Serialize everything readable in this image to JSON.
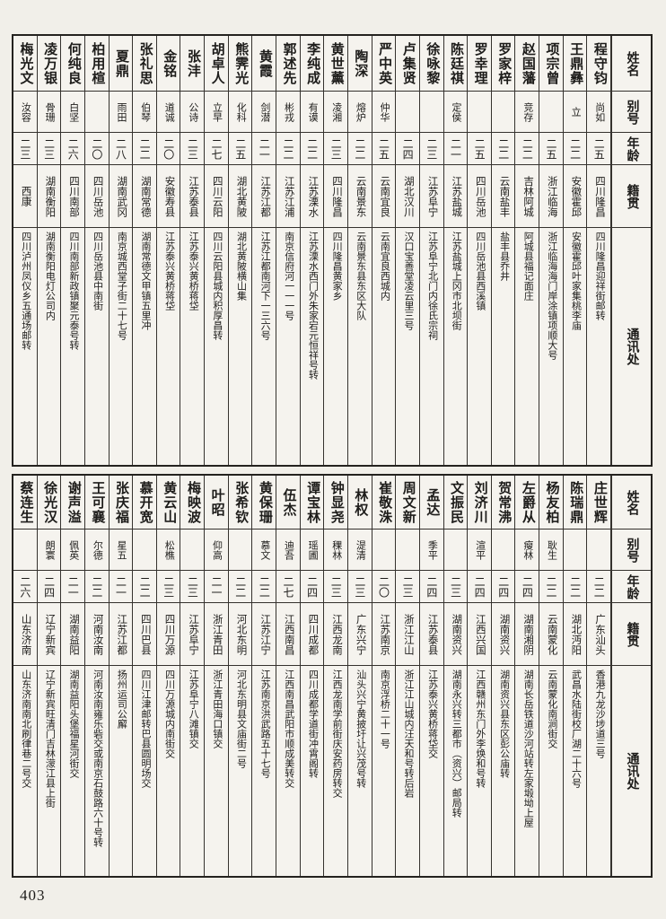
{
  "page": {
    "number": "403"
  },
  "headers": {
    "name": "姓名",
    "alias": "别号",
    "age": "年龄",
    "origin": "籍贯",
    "address": "通讯处"
  },
  "tables": {
    "top": {
      "entries": [
        {
          "name": "程守钧",
          "alias": "尚如",
          "age": "二五",
          "origin": "四川隆昌",
          "address": "四川隆昌迎祥街邮转"
        },
        {
          "name": "王鼎彝",
          "alias": "立",
          "age": "二二",
          "origin": "安徽霍邱",
          "address": "安徽霍邱叶家集桃李庙"
        },
        {
          "name": "项宗曾",
          "alias": "",
          "age": "二五",
          "origin": "浙江临海",
          "address": "浙江临海海门岸涂镇项顺大号"
        },
        {
          "name": "赵国藩",
          "alias": "竞存",
          "age": "二二",
          "origin": "吉林阿城",
          "address": "阿城县福记面庄"
        },
        {
          "name": "罗家梓",
          "alias": "",
          "age": "二二",
          "origin": "云南盐丰",
          "address": "盐丰县乔井"
        },
        {
          "name": "罗幸理",
          "alias": "",
          "age": "二五",
          "origin": "四川岳池",
          "address": "四川岳池县西溪镇"
        },
        {
          "name": "陈廷祺",
          "alias": "定侯",
          "age": "二一",
          "origin": "江苏盐城",
          "address": "江苏盐城上冈市北坝街"
        },
        {
          "name": "徐咏黎",
          "alias": "",
          "age": "二三",
          "origin": "江苏阜宁",
          "address": "江苏阜宁北门内徐氏宗祠"
        },
        {
          "name": "卢集贤",
          "alias": "",
          "age": "二四",
          "origin": "湖北汉川",
          "address": "汉口宝善堂凌云里三号"
        },
        {
          "name": "严中英",
          "alias": "仲华",
          "age": "二五",
          "origin": "云南宜良",
          "address": "云南宜良西城内"
        },
        {
          "name": "陶深",
          "alias": "熔炉",
          "age": "二二",
          "origin": "云南景东",
          "address": "云南景东县东区大队"
        },
        {
          "name": "黄世薰",
          "alias": "凌湘",
          "age": "二三",
          "origin": "四川隆昌",
          "address": "四川隆昌黄家乡"
        },
        {
          "name": "李纯成",
          "alias": "有谟",
          "age": "二二",
          "origin": "江苏溧水",
          "address": "江苏溧水西门外朱家宕元恒祥号转"
        },
        {
          "name": "郭述先",
          "alias": "彬戎",
          "age": "二二",
          "origin": "江苏江浦",
          "address": "南京信府河一一一号"
        },
        {
          "name": "黄霞",
          "alias": "剑潜",
          "age": "二一",
          "origin": "江苏江都",
          "address": "江苏江都南河下一三六号"
        },
        {
          "name": "熊霁光",
          "alias": "化科",
          "age": "二五",
          "origin": "湖北黄陂",
          "address": "湖北黄陂横山集"
        },
        {
          "name": "胡卓人",
          "alias": "立早",
          "age": "二七",
          "origin": "四川云阳",
          "address": "四川云阳县城内积厚昌转"
        },
        {
          "name": "张沣",
          "alias": "公诗",
          "age": "二三",
          "origin": "江苏泰县",
          "address": "江苏泰兴黄桥蒋垈"
        },
        {
          "name": "金铭",
          "alias": "道诚",
          "age": "二〇",
          "origin": "安徽寿县",
          "address": "江苏泰兴黄桥蒋垈"
        },
        {
          "name": "张礼思",
          "alias": "伯琴",
          "age": "二二",
          "origin": "湖南常德",
          "address": "湖南常德文甲镇五里冲"
        },
        {
          "name": "夏鼎",
          "alias": "雨田",
          "age": "二八",
          "origin": "湖南武冈",
          "address": "南京城西堂子街二十七号"
        },
        {
          "name": "柏用楦",
          "alias": "",
          "age": "二〇",
          "origin": "四川岳池",
          "address": "四川岳池县中南街"
        },
        {
          "name": "何纯良",
          "alias": "白坚",
          "age": "二六",
          "origin": "四川南部",
          "address": "四川南部新政镇聚元泰号转"
        },
        {
          "name": "凌万银",
          "alias": "骨珊",
          "age": "二三",
          "origin": "湖南衡阳",
          "address": "湖南衡阳电灯公司内"
        },
        {
          "name": "梅光文",
          "alias": "汝容",
          "age": "二三",
          "origin": "西康",
          "address": "四川泸州凤仪乡五通场邮转"
        }
      ]
    },
    "bottom": {
      "entries": [
        {
          "name": "庄世辉",
          "alias": "",
          "age": "二二",
          "origin": "广东汕头",
          "address": "香港九龙沙埗道三号"
        },
        {
          "name": "陈瑞鼎",
          "alias": "",
          "age": "二二",
          "origin": "湖北沔阳",
          "address": "武昌水陆街校厂湖二十六号"
        },
        {
          "name": "杨友柏",
          "alias": "耿生",
          "age": "二二",
          "origin": "云南蒙化",
          "address": "云南蒙化南涧街交"
        },
        {
          "name": "左爵从",
          "alias": "瘦林",
          "age": "二四",
          "origin": "湖南湘阴",
          "address": "湖南长岳铁道沙河站转左家塅坳上屋"
        },
        {
          "name": "贺常沸",
          "alias": "",
          "age": "二四",
          "origin": "湖南资兴",
          "address": "湖南资兴县东区彭公庙转"
        },
        {
          "name": "刘济川",
          "alias": "渲平",
          "age": "二四",
          "origin": "江西兴国",
          "address": "江西赣州东门外李焕和号转"
        },
        {
          "name": "文振民",
          "alias": "",
          "age": "二三",
          "origin": "湖南资兴",
          "address": "湖南永兴转三都市（资兴）邮局转"
        },
        {
          "name": "孟达",
          "alias": "季平",
          "age": "二四",
          "origin": "江苏泰县",
          "address": "江苏泰兴黄桥蒋垈交"
        },
        {
          "name": "周文新",
          "alias": "",
          "age": "二三",
          "origin": "浙江江山",
          "address": "浙江江山城内汪天和号转后岩"
        },
        {
          "name": "崔敬洙",
          "alias": "",
          "age": "二〇",
          "origin": "江苏南京",
          "address": "南京浮桥二十一号"
        },
        {
          "name": "林权",
          "alias": "湜清",
          "age": "二三",
          "origin": "广东兴宁",
          "address": "汕头兴宁黄披圩让兴茂号转"
        },
        {
          "name": "钟显尧",
          "alias": "稞林",
          "age": "二三",
          "origin": "江西龙南",
          "address": "江西龙南学前街庆安药房转交"
        },
        {
          "name": "谭宝林",
          "alias": "瑶圃",
          "age": "二四",
          "origin": "四川成都",
          "address": "四川成都学道街冲霄阁转"
        },
        {
          "name": "伍杰",
          "alias": "迪吾",
          "age": "二七",
          "origin": "江西南昌",
          "address": "江西南昌武阳市顺成美转交"
        },
        {
          "name": "黄保珊",
          "alias": "慕文",
          "age": "二二",
          "origin": "江苏江宁",
          "address": "江苏南京洪武路五十七号"
        },
        {
          "name": "张希钦",
          "alias": "",
          "age": "二二",
          "origin": "河北东明",
          "address": "河北东明县文庙街二号"
        },
        {
          "name": "叶昭",
          "alias": "仰高",
          "age": "二一",
          "origin": "浙江青田",
          "address": "浙江青田海口镇交"
        },
        {
          "name": "梅映波",
          "alias": "",
          "age": "二三",
          "origin": "江苏阜宁",
          "address": "江苏阜宁八滩镇交"
        },
        {
          "name": "黄云山",
          "alias": "松樵",
          "age": "二三",
          "origin": "四川万源",
          "address": "四川万源城内南街交"
        },
        {
          "name": "慕开宽",
          "alias": "",
          "age": "二二",
          "origin": "四川巴县",
          "address": "四川江津邮转巴县圆明场交"
        },
        {
          "name": "张庆福",
          "alias": "星五",
          "age": "二一",
          "origin": "江苏江都",
          "address": "扬州运司公廨"
        },
        {
          "name": "王可襄",
          "alias": "尔德",
          "age": "二二",
          "origin": "河南汝南",
          "address": "河南汝南雍乐砦交或南京石鼓路六十号转"
        },
        {
          "name": "谢声溢",
          "alias": "佩英",
          "age": "二一",
          "origin": "湖南益阳",
          "address": "湖南益阳头堡福星河街交"
        },
        {
          "name": "徐光汉",
          "alias": "朗寰",
          "age": "二四",
          "origin": "辽宁新宾",
          "address": "辽宁新宾旺清门吉林濛江县上街"
        },
        {
          "name": "蔡连生",
          "alias": "",
          "age": "二六",
          "origin": "山东济南",
          "address": "山东济南南北刷律巷二号交"
        }
      ]
    }
  }
}
